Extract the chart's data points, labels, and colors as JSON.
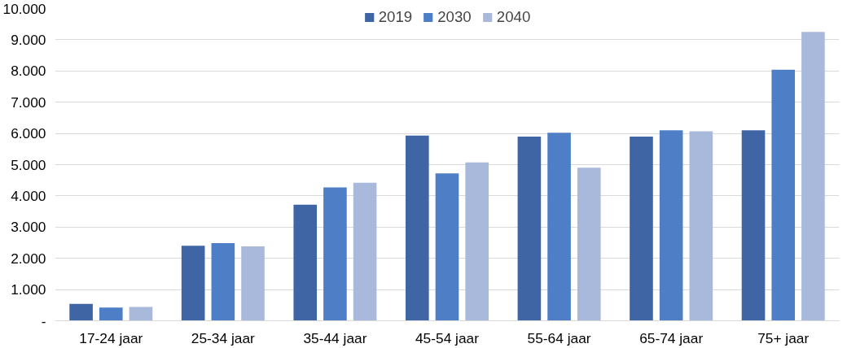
{
  "chart_data": {
    "type": "bar",
    "categories": [
      "17-24 jaar",
      "25-34 jaar",
      "35-44 jaar",
      "45-54 jaar",
      "55-64 jaar",
      "65-74 jaar",
      "75+ jaar"
    ],
    "series": [
      {
        "name": "2019",
        "color": "#3f65a4",
        "values": [
          540,
          2400,
          3720,
          5930,
          5900,
          5900,
          6100
        ]
      },
      {
        "name": "2030",
        "color": "#4e7fc6",
        "values": [
          420,
          2490,
          4270,
          4720,
          6020,
          6100,
          8040
        ]
      },
      {
        "name": "2040",
        "color": "#a9b9dc",
        "values": [
          440,
          2380,
          4420,
          5070,
          4900,
          6070,
          9250
        ]
      }
    ],
    "ylim": [
      0,
      10000
    ],
    "yticks": [
      {
        "value": 0,
        "label": "-"
      },
      {
        "value": 1000,
        "label": "1.000"
      },
      {
        "value": 2000,
        "label": "2.000"
      },
      {
        "value": 3000,
        "label": "3.000"
      },
      {
        "value": 4000,
        "label": "4.000"
      },
      {
        "value": 5000,
        "label": "5.000"
      },
      {
        "value": 6000,
        "label": "6.000"
      },
      {
        "value": 7000,
        "label": "7.000"
      },
      {
        "value": 8000,
        "label": "8.000"
      },
      {
        "value": 9000,
        "label": "9.000"
      },
      {
        "value": 10000,
        "label": "10.000"
      }
    ],
    "grid": "y",
    "legend": "top"
  }
}
